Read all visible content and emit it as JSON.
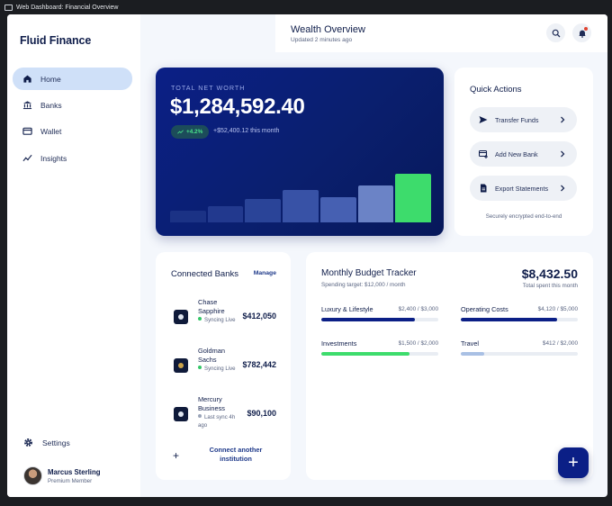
{
  "window": {
    "title": "Web Dashboard: Financial Overview"
  },
  "sidebar": {
    "brand": "Fluid Finance",
    "items": [
      {
        "label": "Home",
        "icon": "home-icon",
        "active": true
      },
      {
        "label": "Banks",
        "icon": "bank-icon",
        "active": false
      },
      {
        "label": "Wallet",
        "icon": "wallet-icon",
        "active": false
      },
      {
        "label": "Insights",
        "icon": "insights-icon",
        "active": false
      }
    ],
    "settings_label": "Settings",
    "user": {
      "name": "Marcus Sterling",
      "role": "Premium Member"
    }
  },
  "header": {
    "title": "Wealth Overview",
    "subtitle": "Updated 2 minutes ago"
  },
  "net_worth": {
    "label": "TOTAL NET WORTH",
    "value": "$1,284,592.40",
    "badge": "+4.2%",
    "change": "+$52,400.12 this month",
    "bar_levels": [
      0.2,
      0.28,
      0.4,
      0.55,
      0.42,
      0.62,
      0.82
    ],
    "bar_colors": [
      "#1b3285",
      "#22398e",
      "#2a4498",
      "#3852a6",
      "#4660b2",
      "#6b83c6",
      "#3ddc6c"
    ]
  },
  "quick_actions": {
    "title": "Quick Actions",
    "buttons": [
      {
        "label": "Transfer Funds",
        "icon": "send-icon"
      },
      {
        "label": "Add New Bank",
        "icon": "add-bank-icon"
      },
      {
        "label": "Export Statements",
        "icon": "document-icon"
      }
    ],
    "footer": "Securely encrypted end-to-end"
  },
  "connected_banks": {
    "title": "Connected Banks",
    "manage_label": "Manage",
    "banks": [
      {
        "name": "Chase Sapphire",
        "status": "Syncing Live",
        "value": "$412,050",
        "live": true,
        "logo_color": "#dfe5ef"
      },
      {
        "name": "Goldman Sachs",
        "status": "Syncing Live",
        "value": "$782,442",
        "live": true,
        "logo_color": "#c9a24a"
      },
      {
        "name": "Mercury Business",
        "status": "Last sync 4h ago",
        "value": "$90,100",
        "live": false,
        "logo_color": "#dfe5ef"
      }
    ],
    "connect_label": "Connect another institution"
  },
  "budget": {
    "title": "Monthly Budget Tracker",
    "subtitle": "Spending target: $12,000 / month",
    "total": "$8,432.50",
    "total_label": "Total spent this month",
    "categories": [
      {
        "name": "Luxury & Lifestyle",
        "amount": "$2,400 / $3,000",
        "fraction": 0.8,
        "color": "#0b1f86"
      },
      {
        "name": "Operating Costs",
        "amount": "$4,120 / $5,000",
        "fraction": 0.82,
        "color": "#0b1f86"
      },
      {
        "name": "Investments",
        "amount": "$1,500 / $2,000",
        "fraction": 0.75,
        "color": "#3ddc6c"
      },
      {
        "name": "Travel",
        "amount": "$412 / $2,000",
        "fraction": 0.2,
        "color": "#a9c0e4"
      }
    ]
  },
  "fab": {
    "label": "+"
  }
}
